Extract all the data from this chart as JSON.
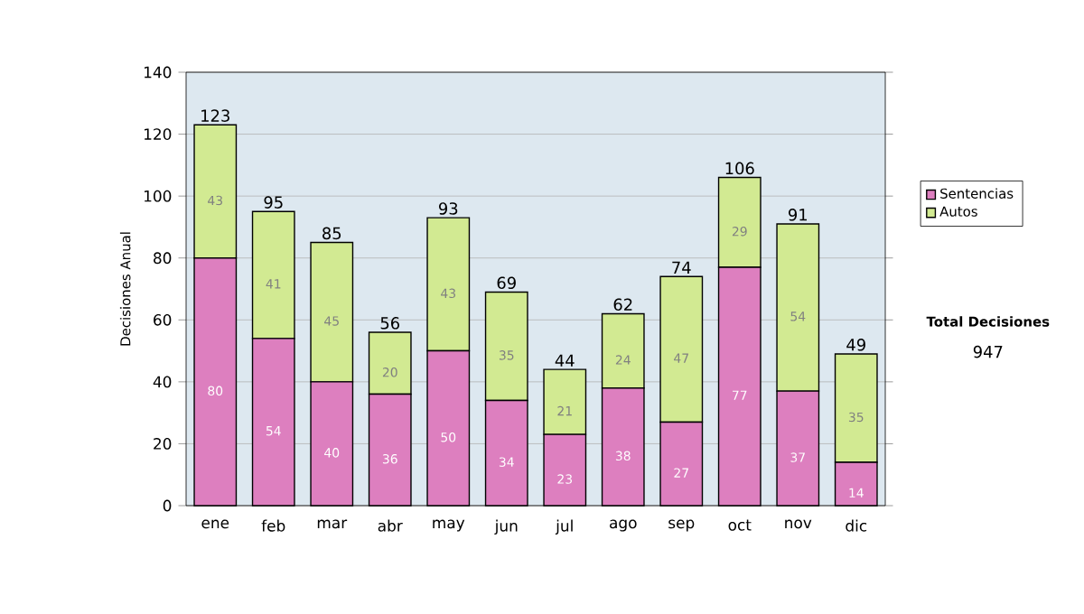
{
  "chart_data": {
    "type": "bar",
    "stacked": true,
    "ylabel": "Decisiones Anual",
    "categories": [
      "ene",
      "feb",
      "mar",
      "abr",
      "may",
      "jun",
      "jul",
      "ago",
      "sep",
      "oct",
      "nov",
      "dic"
    ],
    "series": [
      {
        "name": "Sentencias",
        "color": "#dd7fbf",
        "values": [
          80,
          54,
          40,
          36,
          50,
          34,
          23,
          38,
          27,
          77,
          37,
          14
        ]
      },
      {
        "name": "Autos",
        "color": "#d2ea92",
        "values": [
          43,
          41,
          45,
          20,
          43,
          35,
          21,
          24,
          47,
          29,
          54,
          35
        ]
      }
    ],
    "totals": [
      "123",
      "95",
      "85",
      "56",
      "93",
      "69",
      "44",
      "62",
      "74",
      "106",
      "91",
      "49"
    ],
    "ylim": [
      0,
      140
    ],
    "yticks": [
      0,
      20,
      40,
      60,
      80,
      100,
      120,
      140
    ],
    "grid": "y",
    "legend": "right",
    "data_labels": true,
    "annotations": [
      "Total Decisiones",
      "947"
    ]
  }
}
